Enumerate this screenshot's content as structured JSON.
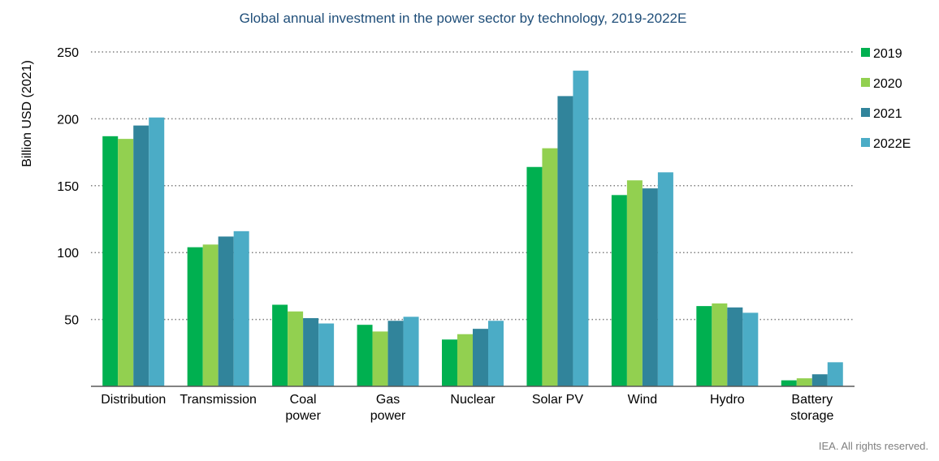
{
  "chart_data": {
    "type": "bar",
    "title": "Global annual investment in the power sector by technology, 2019-2022E",
    "ylabel": "Billion USD (2021)",
    "xlabel": "",
    "ylim": [
      0,
      250
    ],
    "yticks": [
      50,
      100,
      150,
      200,
      250
    ],
    "grid": true,
    "legend_position": "right",
    "categories": [
      [
        "Distribution"
      ],
      [
        "Transmission"
      ],
      [
        "Coal",
        "power"
      ],
      [
        "Gas",
        "power"
      ],
      [
        "Nuclear"
      ],
      [
        "Solar PV"
      ],
      [
        "Wind"
      ],
      [
        "Hydro"
      ],
      [
        "Battery",
        "storage"
      ]
    ],
    "series": [
      {
        "name": "2019",
        "color": "#00b050",
        "values": [
          187,
          104,
          61,
          46,
          35,
          164,
          143,
          60,
          4.5
        ]
      },
      {
        "name": "2020",
        "color": "#92d050",
        "values": [
          185,
          106,
          56,
          41,
          39,
          178,
          154,
          62,
          6
        ]
      },
      {
        "name": "2021",
        "color": "#31849b",
        "values": [
          195,
          112,
          51,
          49,
          43,
          217,
          148,
          59,
          9
        ]
      },
      {
        "name": "2022E",
        "color": "#4bacc6",
        "values": [
          201,
          116,
          47,
          52,
          49,
          236,
          160,
          55,
          18
        ]
      }
    ]
  },
  "footer": {
    "credit": "IEA. All rights reserved."
  }
}
